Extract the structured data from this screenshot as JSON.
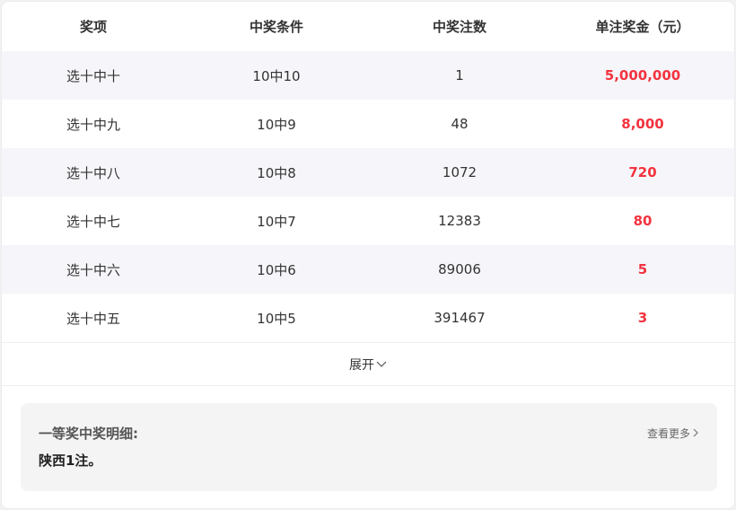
{
  "table": {
    "headers": [
      "奖项",
      "中奖条件",
      "中奖注数",
      "单注奖金（元）"
    ],
    "rows": [
      [
        "选十中十",
        "10中10",
        "1",
        "5,000,000"
      ],
      [
        "选十中九",
        "10中9",
        "48",
        "8,000"
      ],
      [
        "选十中八",
        "10中8",
        "1072",
        "720"
      ],
      [
        "选十中七",
        "10中7",
        "12383",
        "80"
      ],
      [
        "选十中六",
        "10中6",
        "89006",
        "5"
      ],
      [
        "选十中五",
        "10中5",
        "391467",
        "3"
      ]
    ]
  },
  "expand_label": "展开",
  "detail": {
    "title": "一等奖中奖明细:",
    "text": "陕西1注。",
    "more_label": "查看更多"
  },
  "colors": {
    "prize": "#f3333f",
    "alt_row": "#f6f6fa"
  },
  "icons": {
    "expand": "chevron-down-icon",
    "more": "chevron-right-icon"
  }
}
